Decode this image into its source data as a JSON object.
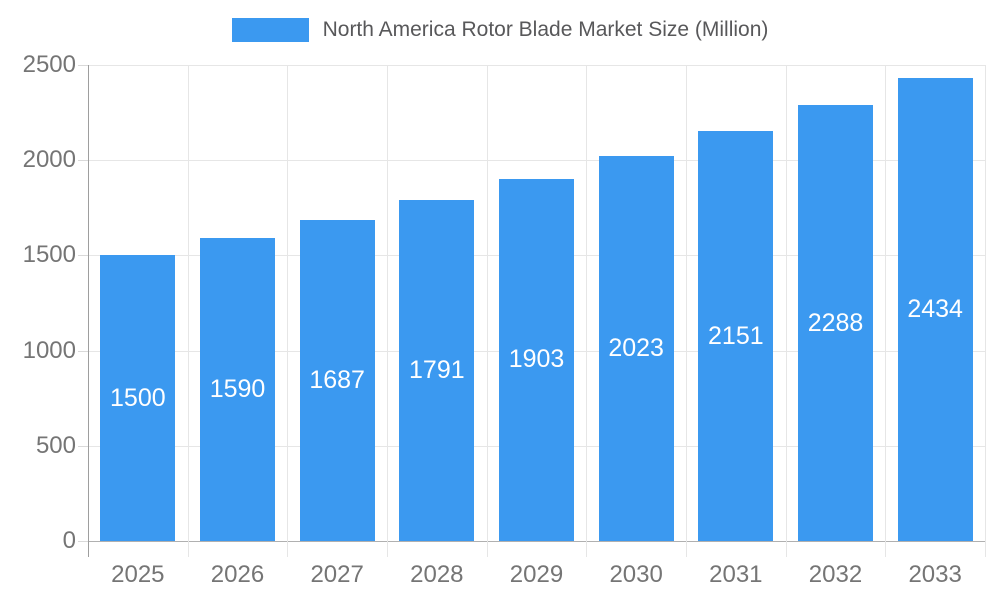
{
  "chart_data": {
    "type": "bar",
    "title": "North America Rotor Blade Market Size (Million)",
    "categories": [
      "2025",
      "2026",
      "2027",
      "2028",
      "2029",
      "2030",
      "2031",
      "2032",
      "2033"
    ],
    "values": [
      1500,
      1590,
      1687,
      1791,
      1903,
      2023,
      2151,
      2288,
      2434
    ],
    "xlabel": "",
    "ylabel": "",
    "ylim": [
      0,
      2500
    ],
    "yticks": [
      0,
      500,
      1000,
      1500,
      2000,
      2500
    ],
    "grid": true,
    "legend_position": "top",
    "value_labels": "inside-center",
    "colors": {
      "bar": "#3b99f0",
      "value_label": "#ffffff",
      "axis_text": "#757575",
      "legend_text": "#58585a",
      "gridline": "#e6e6e6",
      "axis_line": "#9e9e9e",
      "baseline": "#b0b0b0"
    }
  }
}
